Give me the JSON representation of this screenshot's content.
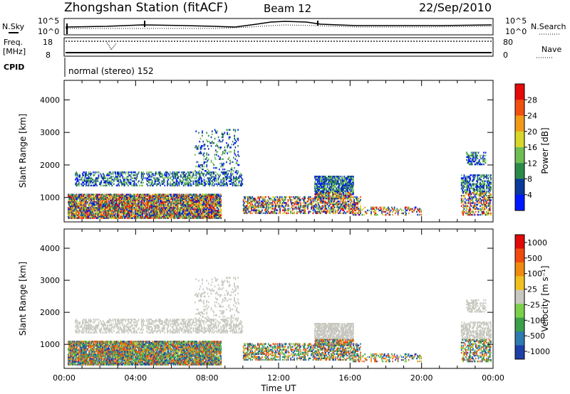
{
  "header": {
    "station": "Zhongshan Station (fitACF)",
    "beam": "Beam 12",
    "date": "22/Sep/2010"
  },
  "status_panels": {
    "nsky_label": "N.Sky",
    "nsearch_label": "N.Search",
    "noise_ticks": [
      "10^5",
      "10^0"
    ],
    "freq_label_1": "Freq.",
    "freq_label_2": "[MHz]",
    "freq_ticks": [
      "18",
      "8"
    ],
    "nave_label": "Nave",
    "nave_ticks": [
      "80",
      "0"
    ],
    "cpid_label": "CPID",
    "cpid_text": "normal (stereo) 152"
  },
  "chart_data": [
    {
      "type": "heatmap",
      "name": "power",
      "ylabel": "Slant Range [km]",
      "ylim": [
        250,
        4600
      ],
      "yticks": [
        "1000",
        "2000",
        "3000",
        "4000"
      ],
      "colorbar_label": "Power [dB]",
      "colorbar_ticks": [
        "4",
        "8",
        "12",
        "16",
        "20",
        "24",
        "28"
      ],
      "colors": [
        "#0018ff",
        "#0a3a9a",
        "#2b8a4a",
        "#6fbe54",
        "#d8d62a",
        "#f09a1a",
        "#f05010",
        "#e40a0a"
      ]
    },
    {
      "type": "heatmap",
      "name": "velocity",
      "ylabel": "Slant Range [km]",
      "xlabel": "Time UT",
      "ylim": [
        250,
        4600
      ],
      "yticks": [
        "1000",
        "2000",
        "3000",
        "4000"
      ],
      "xticks": [
        "00:00",
        "04:00",
        "08:00",
        "12:00",
        "16:00",
        "20:00",
        "00:00"
      ],
      "colorbar_label": "Velocity [m s⁻¹]",
      "colorbar_ticks": [
        "1000",
        "500",
        "100",
        "25",
        "-25",
        "-100",
        "-500",
        "-1000"
      ],
      "colors": [
        "#1f3fa8",
        "#2f7ab0",
        "#3aa04a",
        "#7bd04a",
        "#c8c8c0",
        "#f0c020",
        "#f08a10",
        "#f04a10",
        "#e00a0a"
      ]
    }
  ]
}
